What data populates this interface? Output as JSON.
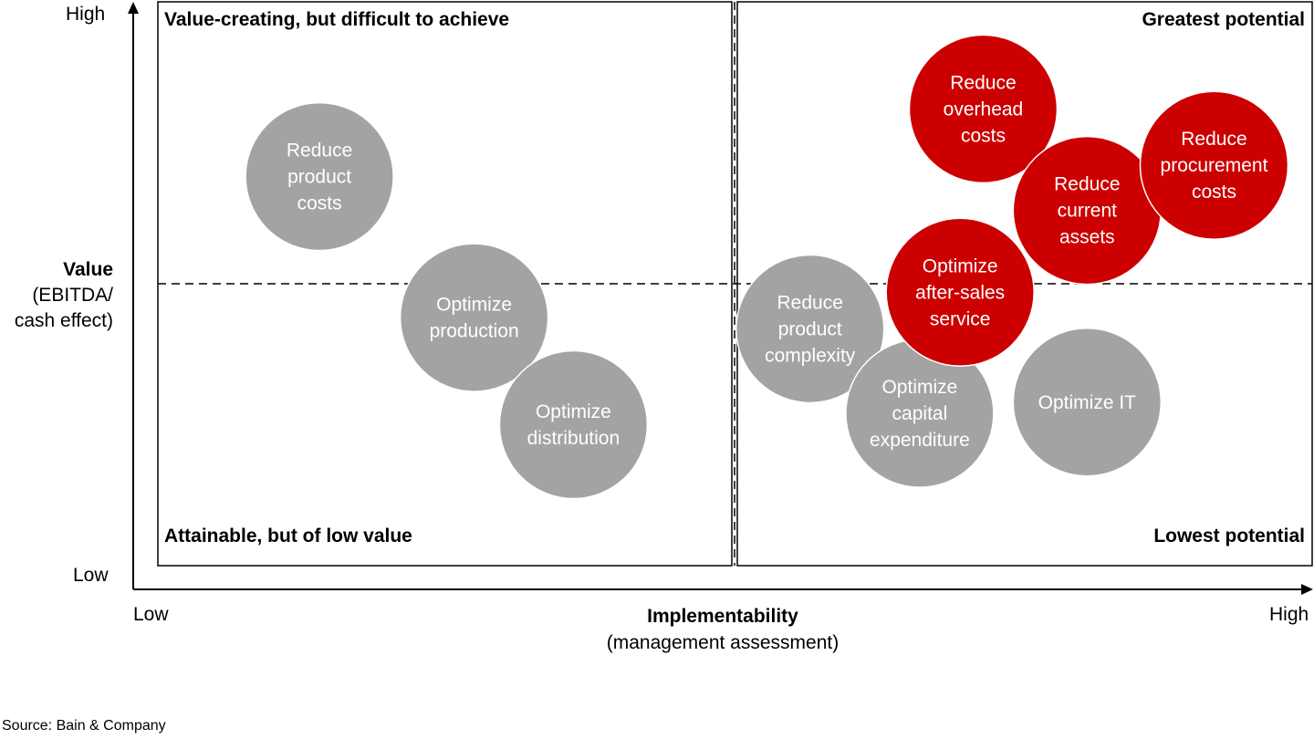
{
  "chart_data": {
    "type": "scatter",
    "title": "",
    "xlabel": "Implementability",
    "xlabel_sub": "(management assessment)",
    "ylabel": "Value",
    "ylabel_sub": [
      "(EBITDA/",
      "cash effect)"
    ],
    "x_ticks": {
      "low": "Low",
      "high": "High"
    },
    "y_ticks": {
      "low": "Low",
      "high": "High"
    },
    "xlim": [
      0,
      100
    ],
    "ylim": [
      0,
      100
    ],
    "quadrants": {
      "top_left": "Value-creating, but difficult to achieve",
      "top_right": "Greatest potential",
      "bottom_left": "Attainable, but of low value",
      "bottom_right": "Lowest potential"
    },
    "colors": {
      "highlight": "#cc0000",
      "neutral": "#a3a3a3"
    },
    "points": [
      {
        "lines": [
          "Reduce",
          "product",
          "costs"
        ],
        "x": 14,
        "y": 69,
        "highlight": false
      },
      {
        "lines": [
          "Optimize",
          "production"
        ],
        "x": 27.4,
        "y": 44,
        "highlight": false
      },
      {
        "lines": [
          "Optimize",
          "distribution"
        ],
        "x": 36,
        "y": 25,
        "highlight": false
      },
      {
        "lines": [
          "Reduce",
          "product",
          "complexity"
        ],
        "x": 56.5,
        "y": 42,
        "highlight": false
      },
      {
        "lines": [
          "Optimize",
          "capital",
          "expenditure"
        ],
        "x": 66,
        "y": 27,
        "highlight": false
      },
      {
        "lines": [
          "Optimize IT"
        ],
        "x": 80.5,
        "y": 29,
        "highlight": false
      },
      {
        "lines": [
          "Optimize",
          "after-sales",
          "service"
        ],
        "x": 69.5,
        "y": 48.5,
        "highlight": true
      },
      {
        "lines": [
          "Reduce",
          "overhead",
          "costs"
        ],
        "x": 71.5,
        "y": 81,
        "highlight": true
      },
      {
        "lines": [
          "Reduce",
          "current",
          "assets"
        ],
        "x": 80.5,
        "y": 63,
        "highlight": true
      },
      {
        "lines": [
          "Reduce",
          "procurement",
          "costs"
        ],
        "x": 91.5,
        "y": 71,
        "highlight": true
      }
    ]
  },
  "source": "Source: Bain & Company"
}
